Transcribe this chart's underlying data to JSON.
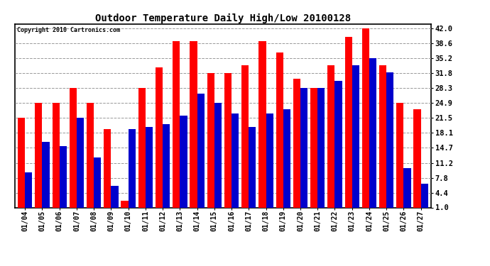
{
  "title": "Outdoor Temperature Daily High/Low 20100128",
  "copyright": "Copyright 2010 Cartronics.com",
  "dates": [
    "01/04",
    "01/05",
    "01/06",
    "01/07",
    "01/08",
    "01/09",
    "01/10",
    "01/11",
    "01/12",
    "01/13",
    "01/14",
    "01/15",
    "01/16",
    "01/17",
    "01/18",
    "01/19",
    "01/20",
    "01/21",
    "01/22",
    "01/23",
    "01/24",
    "01/25",
    "01/26",
    "01/27"
  ],
  "highs": [
    21.5,
    24.9,
    24.9,
    28.3,
    24.9,
    19.0,
    2.5,
    28.3,
    33.0,
    39.0,
    39.0,
    31.8,
    31.8,
    33.5,
    39.0,
    36.5,
    30.5,
    28.3,
    33.5,
    40.0,
    42.0,
    33.5,
    24.9,
    23.5
  ],
  "lows": [
    9.0,
    16.0,
    15.0,
    21.5,
    12.5,
    6.0,
    19.0,
    19.5,
    20.0,
    22.0,
    27.0,
    25.0,
    22.5,
    19.5,
    22.5,
    23.5,
    28.3,
    28.3,
    30.0,
    33.5,
    35.2,
    32.0,
    10.0,
    6.5
  ],
  "high_color": "#ff0000",
  "low_color": "#0000cc",
  "bg_color": "#ffffff",
  "plot_bg_color": "#ffffff",
  "grid_color": "#999999",
  "yticks": [
    1.0,
    4.4,
    7.8,
    11.2,
    14.7,
    18.1,
    21.5,
    24.9,
    28.3,
    31.8,
    35.2,
    38.6,
    42.0
  ],
  "ymin": 1.0,
  "ymax": 43.0,
  "bar_width": 0.42,
  "figwidth": 6.9,
  "figheight": 3.75,
  "dpi": 100
}
